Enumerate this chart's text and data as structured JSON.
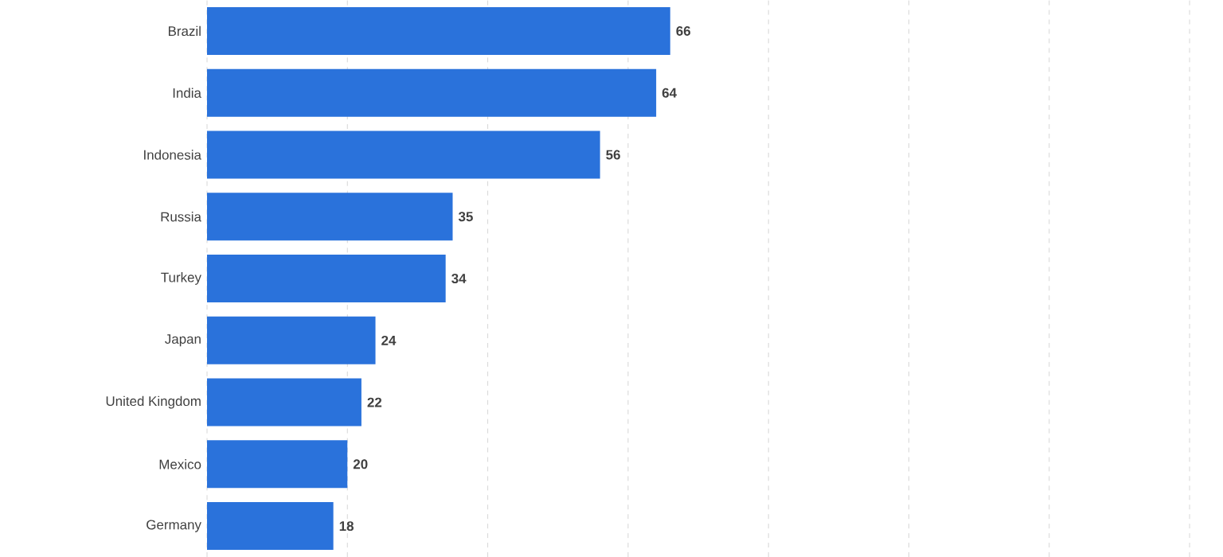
{
  "chart_data": {
    "type": "bar",
    "orientation": "horizontal",
    "categories": [
      "Brazil",
      "India",
      "Indonesia",
      "Russia",
      "Turkey",
      "Japan",
      "United Kingdom",
      "Mexico",
      "Germany"
    ],
    "values": [
      66,
      64,
      56,
      35,
      34,
      24,
      22,
      20,
      18
    ],
    "color": "#2a72db",
    "data_labels": true,
    "grid": "x",
    "tick_labels": "y",
    "xlim": [
      0,
      140
    ],
    "xticks": [
      {
        "value": 0,
        "label": null
      },
      {
        "value": 20,
        "label": null
      },
      {
        "value": 40,
        "label": null
      },
      {
        "value": 60,
        "label": null
      },
      {
        "value": 80,
        "label": null
      },
      {
        "value": 100,
        "label": null
      },
      {
        "value": 120,
        "label": null
      },
      {
        "value": 140,
        "label": null
      }
    ]
  }
}
